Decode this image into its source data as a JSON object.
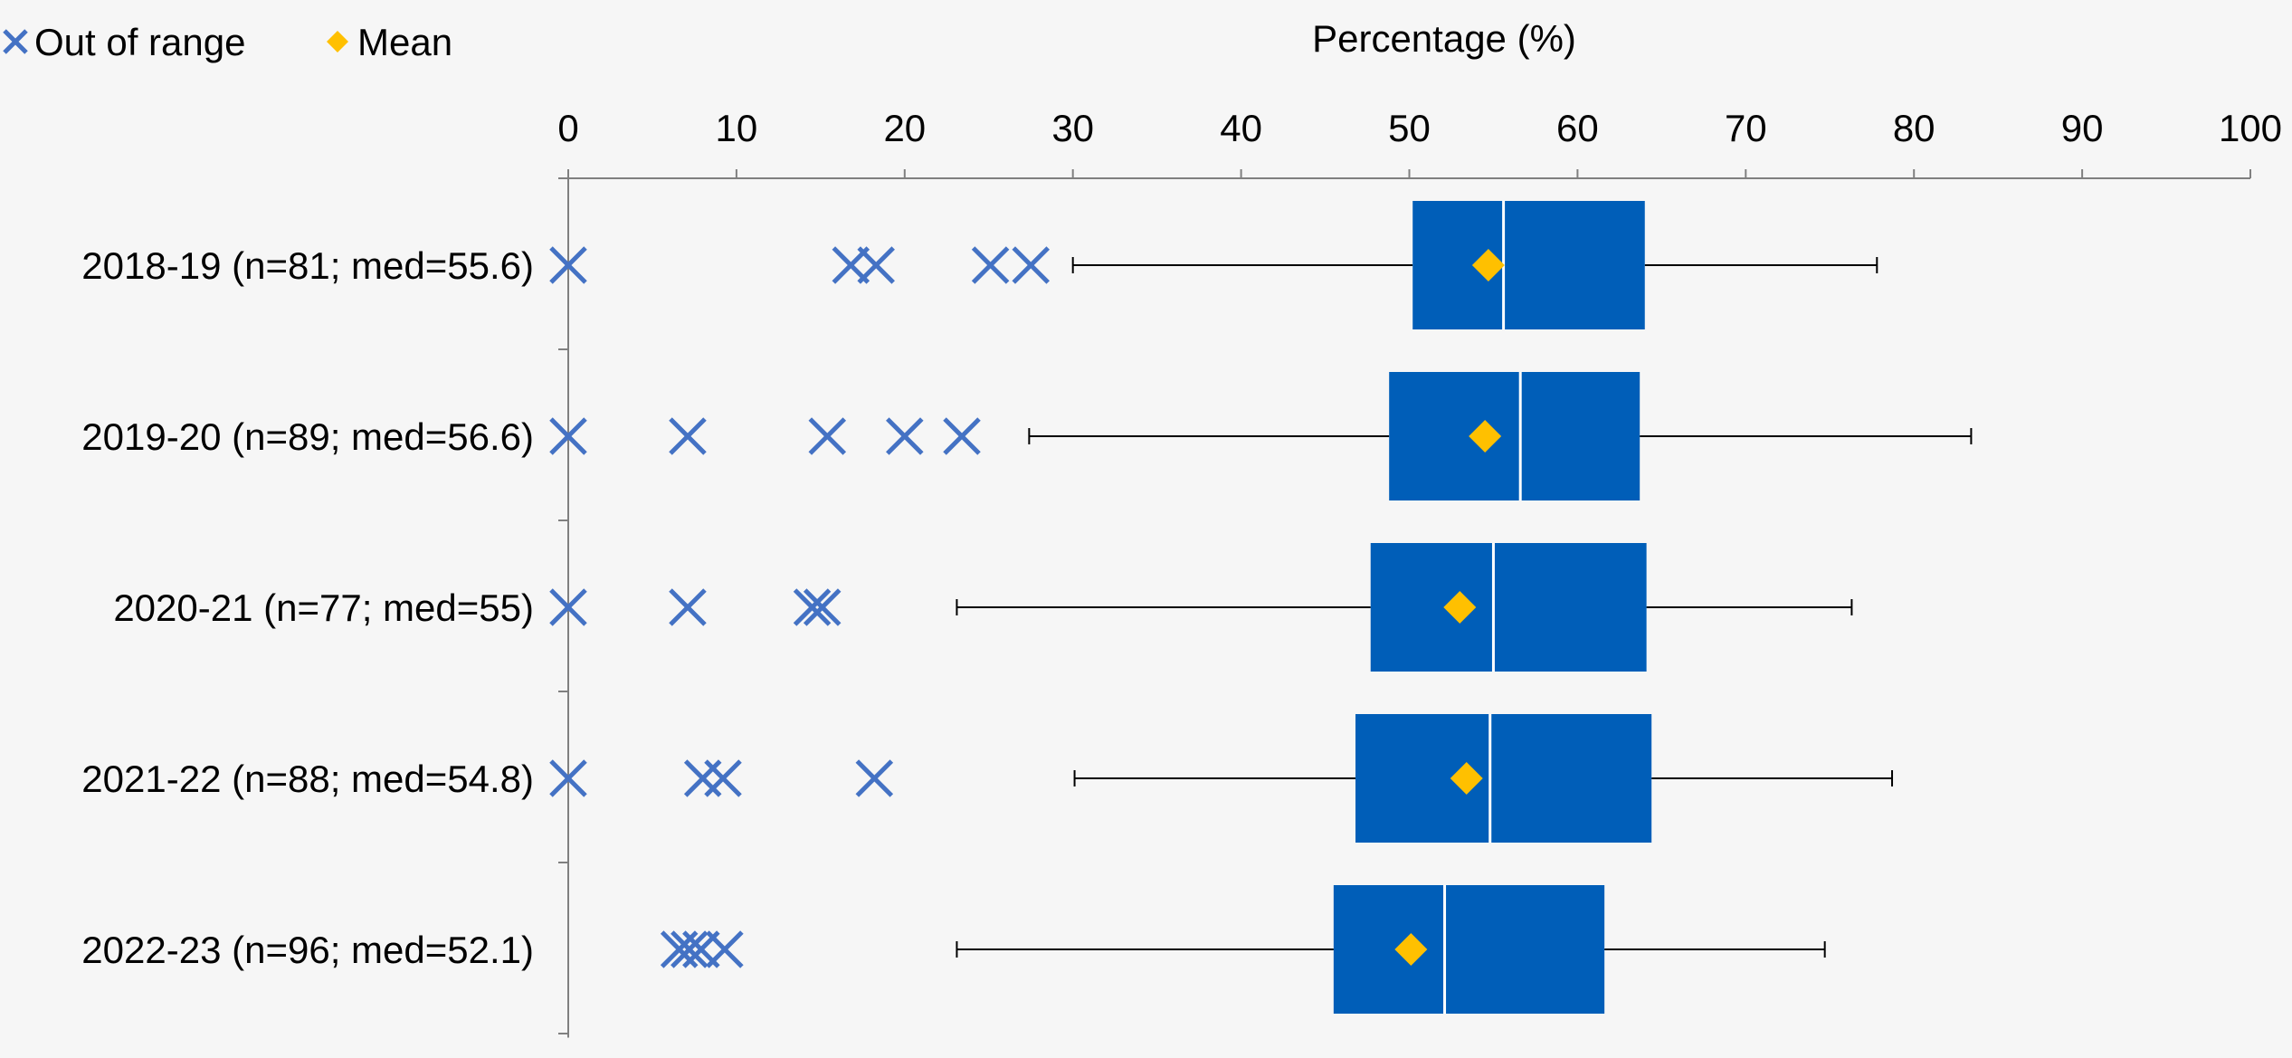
{
  "chart_data": {
    "type": "box",
    "xlabel": "Percentage (%)",
    "xlim": [
      0,
      100
    ],
    "x_ticks": [
      "0",
      "10",
      "20",
      "30",
      "40",
      "50",
      "60",
      "70",
      "80",
      "90",
      "100"
    ],
    "legend": {
      "position": "top-left",
      "items": [
        {
          "label": "Out of range",
          "marker": "x",
          "color": "#4472c4"
        },
        {
          "label": "Mean",
          "marker": "diamond",
          "color": "#ffc000"
        }
      ]
    },
    "colors": {
      "box": "#005eb8",
      "median_line": "#ffffff",
      "outlier": "#4472c4",
      "mean": "#ffc000",
      "whisker": "#000000",
      "axis": "#808080"
    },
    "categories": [
      "2018-19 (n=81; med=55.6)",
      "2019-20 (n=89; med=56.6)",
      "2020-21 (n=77; med=55)",
      "2021-22 (n=88; med=54.8)",
      "2022-23 (n=96; med=52.1)"
    ],
    "series": [
      {
        "label": "2018-19",
        "whisker_low": 30.0,
        "q1": 50.2,
        "median": 55.6,
        "q3": 64.0,
        "whisker_high": 77.8,
        "mean": 54.7,
        "outliers": [
          0,
          16.8,
          18.3,
          25.1,
          27.5
        ]
      },
      {
        "label": "2019-20",
        "whisker_low": 27.4,
        "q1": 48.8,
        "median": 56.6,
        "q3": 63.7,
        "whisker_high": 83.4,
        "mean": 54.5,
        "outliers": [
          0,
          7.1,
          15.4,
          20.0,
          23.4
        ]
      },
      {
        "label": "2020-21",
        "whisker_low": 23.1,
        "q1": 47.7,
        "median": 55.0,
        "q3": 64.1,
        "whisker_high": 76.3,
        "mean": 53.0,
        "outliers": [
          0,
          7.1,
          14.5,
          15.1
        ]
      },
      {
        "label": "2021-22",
        "whisker_low": 30.1,
        "q1": 46.8,
        "median": 54.8,
        "q3": 64.4,
        "whisker_high": 78.7,
        "mean": 53.4,
        "outliers": [
          0,
          8.0,
          9.2,
          18.2
        ]
      },
      {
        "label": "2022-23",
        "whisker_low": 23.1,
        "q1": 45.5,
        "median": 52.1,
        "q3": 61.6,
        "whisker_high": 74.7,
        "mean": 50.1,
        "outliers": [
          6.6,
          7.2,
          7.9,
          9.3
        ]
      }
    ]
  }
}
